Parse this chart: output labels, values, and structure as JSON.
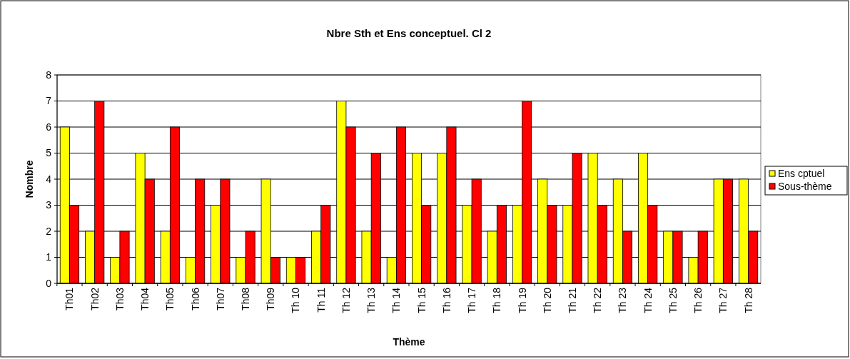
{
  "chart_data": {
    "type": "bar",
    "title": "Nbre Sth et Ens conceptuel. Cl 2",
    "xlabel": "Thème",
    "ylabel": "Nombre",
    "categories": [
      "Th01",
      "Th02",
      "Th03",
      "Th04",
      "Th05",
      "Th06",
      "Th07",
      "Th08",
      "Th09",
      "Th 10",
      "Th 11",
      "Th 12",
      "Th 13",
      "Th 14",
      "Th 15",
      "Th 16",
      "Th 17",
      "Th 18",
      "Th 19",
      "Th 20",
      "Th 21",
      "Th 22",
      "Th 23",
      "Th 24",
      "Th 25",
      "Th 26",
      "Th 27",
      "Th 28"
    ],
    "series": [
      {
        "name": "Ens cptuel",
        "color": "#ffff00",
        "values": [
          6,
          2,
          1,
          5,
          2,
          1,
          3,
          1,
          4,
          1,
          2,
          7,
          2,
          1,
          5,
          5,
          3,
          2,
          3,
          4,
          3,
          5,
          4,
          5,
          2,
          1,
          4,
          4
        ]
      },
      {
        "name": "Sous-thème",
        "color": "#ff0000",
        "values": [
          3,
          7,
          2,
          4,
          6,
          4,
          4,
          2,
          1,
          1,
          3,
          6,
          5,
          6,
          3,
          6,
          4,
          3,
          7,
          3,
          5,
          3,
          2,
          3,
          2,
          2,
          4,
          2
        ]
      }
    ],
    "ylim": [
      0,
      8
    ],
    "yticks": [
      0,
      1,
      2,
      3,
      4,
      5,
      6,
      7,
      8
    ],
    "grid": "y",
    "legend": "right"
  }
}
